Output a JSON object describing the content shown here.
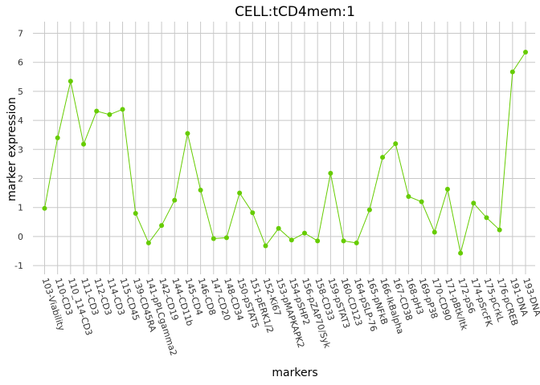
{
  "chart_data": {
    "type": "line",
    "title": "CELL:tCD4mem:1",
    "xlabel": "markers",
    "ylabel": "marker expression",
    "ylim": [
      -1.3,
      7.4
    ],
    "yticks": [
      -1,
      0,
      1,
      2,
      3,
      4,
      5,
      6,
      7
    ],
    "grid": true,
    "line_color": "#66cc00",
    "grid_color": "#c8c8c8",
    "categories": [
      "103-Viability",
      "110-CD3",
      "110_114-CD3",
      "111-CD3",
      "112-CD3",
      "114-CD3",
      "115-CD45",
      "139-CD45RA",
      "141-pPLCgamma2",
      "142-CD19",
      "144-CD11b",
      "145-CD4",
      "146-CD8",
      "147-CD20",
      "148-CD34",
      "150-pSTAT5",
      "151-pERK1/2",
      "152-Ki67",
      "153-pMAPKAPK2",
      "154-pSHP2",
      "156-pZAP70/Syk",
      "158-CD33",
      "159-pSTAT3",
      "160-CD123",
      "164-pSLP-76",
      "165-pNFkB",
      "166-IkBalpha",
      "167-CD38",
      "168-pH3",
      "169-pP38",
      "170-CD90",
      "171-pBtk/Itk",
      "172-pS6",
      "174-pSrcFK",
      "175-pCrkL",
      "176-pCREB",
      "191-DNA",
      "193-DNA"
    ],
    "values": [
      0.97,
      3.4,
      5.35,
      3.18,
      4.32,
      4.2,
      4.38,
      0.8,
      -0.22,
      0.38,
      1.25,
      3.55,
      1.6,
      -0.07,
      -0.04,
      1.5,
      0.82,
      -0.32,
      0.28,
      -0.12,
      0.12,
      -0.15,
      2.18,
      -0.15,
      -0.22,
      0.92,
      2.73,
      3.2,
      1.38,
      1.2,
      0.15,
      1.63,
      -0.57,
      1.15,
      0.65,
      0.23,
      5.67,
      6.35
    ]
  }
}
